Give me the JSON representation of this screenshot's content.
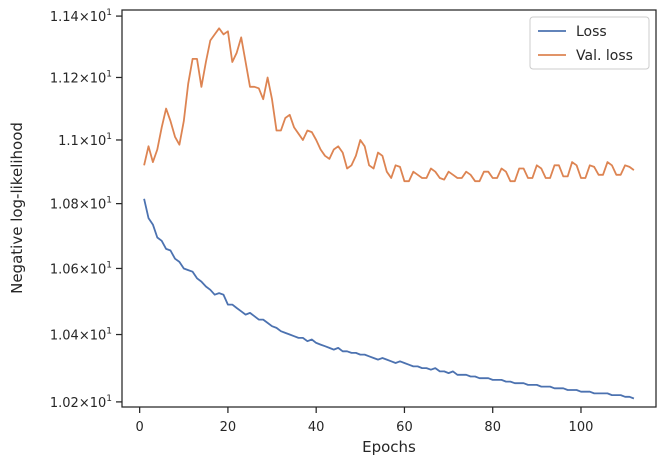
{
  "chart_data": {
    "type": "line",
    "xlabel": "Epochs",
    "ylabel": "Negative log-likelihood",
    "xlim": [
      -4,
      117
    ],
    "ylim": [
      10.185,
      11.42
    ],
    "yscale": "log",
    "grid": false,
    "legend_position": "top-right",
    "x_ticks": [
      0,
      20,
      40,
      60,
      80,
      100
    ],
    "x_tick_labels": [
      "0",
      "20",
      "40",
      "60",
      "80",
      "100"
    ],
    "y_ticks": [
      10.2,
      10.4,
      10.6,
      10.8,
      11.0,
      11.2,
      11.4
    ],
    "y_tick_labels": [
      {
        "mant": "1.02",
        "exp": "1"
      },
      {
        "mant": "1.04",
        "exp": "1"
      },
      {
        "mant": "1.06",
        "exp": "1"
      },
      {
        "mant": "1.08",
        "exp": "1"
      },
      {
        "mant": "1.1",
        "exp": "1"
      },
      {
        "mant": "1.12",
        "exp": "1"
      },
      {
        "mant": "1.14",
        "exp": "1"
      }
    ],
    "series": [
      {
        "name": "Loss",
        "color": "#4c72b0",
        "x": [
          1,
          2,
          3,
          4,
          5,
          6,
          7,
          8,
          9,
          10,
          11,
          12,
          13,
          14,
          15,
          16,
          17,
          18,
          19,
          20,
          21,
          22,
          23,
          24,
          25,
          26,
          27,
          28,
          29,
          30,
          31,
          32,
          33,
          34,
          35,
          36,
          37,
          38,
          39,
          40,
          41,
          42,
          43,
          44,
          45,
          46,
          47,
          48,
          49,
          50,
          51,
          52,
          53,
          54,
          55,
          56,
          57,
          58,
          59,
          60,
          61,
          62,
          63,
          64,
          65,
          66,
          67,
          68,
          69,
          70,
          71,
          72,
          73,
          74,
          75,
          76,
          77,
          78,
          79,
          80,
          81,
          82,
          83,
          84,
          85,
          86,
          87,
          88,
          89,
          90,
          91,
          92,
          93,
          94,
          95,
          96,
          97,
          98,
          99,
          100,
          101,
          102,
          103,
          104,
          105,
          106,
          107,
          108,
          109,
          110,
          111,
          112
        ],
        "values": [
          10.815,
          10.755,
          10.735,
          10.695,
          10.685,
          10.66,
          10.655,
          10.63,
          10.62,
          10.6,
          10.595,
          10.59,
          10.57,
          10.56,
          10.545,
          10.535,
          10.52,
          10.525,
          10.52,
          10.49,
          10.49,
          10.48,
          10.47,
          10.46,
          10.465,
          10.455,
          10.445,
          10.445,
          10.435,
          10.425,
          10.42,
          10.41,
          10.405,
          10.4,
          10.395,
          10.39,
          10.39,
          10.38,
          10.385,
          10.375,
          10.37,
          10.365,
          10.36,
          10.355,
          10.36,
          10.35,
          10.35,
          10.345,
          10.345,
          10.34,
          10.34,
          10.335,
          10.33,
          10.325,
          10.33,
          10.325,
          10.32,
          10.315,
          10.32,
          10.315,
          10.31,
          10.305,
          10.305,
          10.3,
          10.3,
          10.295,
          10.3,
          10.29,
          10.29,
          10.285,
          10.29,
          10.28,
          10.28,
          10.28,
          10.275,
          10.275,
          10.27,
          10.27,
          10.27,
          10.265,
          10.265,
          10.265,
          10.26,
          10.26,
          10.255,
          10.255,
          10.255,
          10.25,
          10.25,
          10.25,
          10.245,
          10.245,
          10.245,
          10.24,
          10.24,
          10.24,
          10.235,
          10.235,
          10.235,
          10.23,
          10.23,
          10.23,
          10.225,
          10.225,
          10.225,
          10.225,
          10.22,
          10.22,
          10.22,
          10.215,
          10.215,
          10.21
        ]
      },
      {
        "name": "Val. loss",
        "color": "#dd8452",
        "x": [
          1,
          2,
          3,
          4,
          5,
          6,
          7,
          8,
          9,
          10,
          11,
          12,
          13,
          14,
          15,
          16,
          17,
          18,
          19,
          20,
          21,
          22,
          23,
          24,
          25,
          26,
          27,
          28,
          29,
          30,
          31,
          32,
          33,
          34,
          35,
          36,
          37,
          38,
          39,
          40,
          41,
          42,
          43,
          44,
          45,
          46,
          47,
          48,
          49,
          50,
          51,
          52,
          53,
          54,
          55,
          56,
          57,
          58,
          59,
          60,
          61,
          62,
          63,
          64,
          65,
          66,
          67,
          68,
          69,
          70,
          71,
          72,
          73,
          74,
          75,
          76,
          77,
          78,
          79,
          80,
          81,
          82,
          83,
          84,
          85,
          86,
          87,
          88,
          89,
          90,
          91,
          92,
          93,
          94,
          95,
          96,
          97,
          98,
          99,
          100,
          101,
          102,
          103,
          104,
          105,
          106,
          107,
          108,
          109,
          110,
          111,
          112
        ],
        "values": [
          10.92,
          10.98,
          10.93,
          10.97,
          11.04,
          11.1,
          11.06,
          11.01,
          10.985,
          11.06,
          11.18,
          11.26,
          11.26,
          11.17,
          11.25,
          11.32,
          11.34,
          11.36,
          11.34,
          11.35,
          11.25,
          11.28,
          11.33,
          11.25,
          11.17,
          11.17,
          11.165,
          11.13,
          11.2,
          11.13,
          11.03,
          11.03,
          11.07,
          11.08,
          11.04,
          11.02,
          11.0,
          11.03,
          11.025,
          11.0,
          10.97,
          10.95,
          10.94,
          10.97,
          10.98,
          10.96,
          10.91,
          10.92,
          10.95,
          11.0,
          10.98,
          10.92,
          10.91,
          10.96,
          10.95,
          10.9,
          10.88,
          10.92,
          10.915,
          10.87,
          10.87,
          10.9,
          10.89,
          10.88,
          10.88,
          10.91,
          10.9,
          10.88,
          10.875,
          10.9,
          10.89,
          10.88,
          10.88,
          10.9,
          10.89,
          10.87,
          10.87,
          10.9,
          10.9,
          10.88,
          10.88,
          10.91,
          10.9,
          10.87,
          10.87,
          10.91,
          10.91,
          10.88,
          10.88,
          10.92,
          10.91,
          10.88,
          10.88,
          10.92,
          10.92,
          10.885,
          10.885,
          10.93,
          10.92,
          10.88,
          10.88,
          10.92,
          10.915,
          10.89,
          10.89,
          10.93,
          10.92,
          10.89,
          10.89,
          10.92,
          10.915,
          10.905
        ]
      }
    ]
  }
}
